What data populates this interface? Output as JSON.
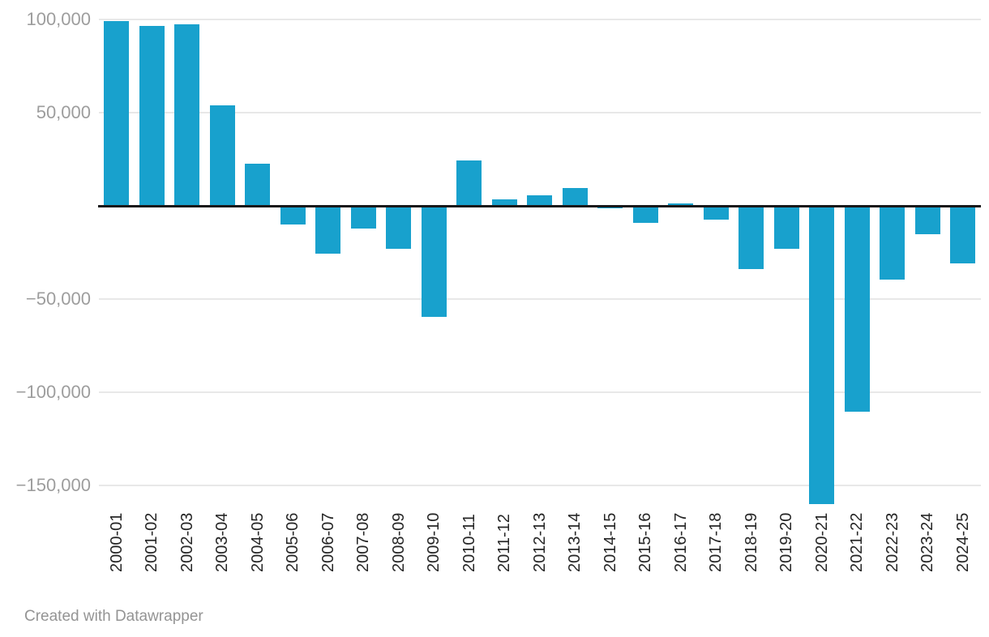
{
  "chart_data": {
    "type": "bar",
    "title": "",
    "xlabel": "",
    "ylabel": "",
    "categories": [
      "2000-01",
      "2001-02",
      "2002-03",
      "2003-04",
      "2004-05",
      "2005-06",
      "2006-07",
      "2007-08",
      "2008-09",
      "2009-10",
      "2010-11",
      "2011-12",
      "2012-13",
      "2013-14",
      "2014-15",
      "2015-16",
      "2016-17",
      "2017-18",
      "2018-19",
      "2019-20",
      "2020-21",
      "2021-22",
      "2022-23",
      "2023-24",
      "2024-25"
    ],
    "values": [
      99000,
      96500,
      97500,
      54000,
      22500,
      -10000,
      -25500,
      -12000,
      -23000,
      -59500,
      24500,
      3500,
      5500,
      9500,
      -1500,
      -9000,
      1500,
      -7500,
      -34000,
      -23000,
      -160000,
      -110500,
      -39500,
      -15000,
      -31000
    ],
    "ylim": [
      -165000,
      110000
    ],
    "yticks": [
      {
        "value": 100000,
        "label": "100,000"
      },
      {
        "value": 50000,
        "label": "50,000"
      },
      {
        "value": -50000,
        "label": "−50,000"
      },
      {
        "value": -100000,
        "label": "−100,000"
      },
      {
        "value": -150000,
        "label": "−150,000"
      }
    ],
    "zero_baseline": true,
    "grid": "horizontal",
    "legend": "none",
    "bar_color": "#18a1cd"
  },
  "colors": {
    "background": "#ffffff",
    "bar": "#18a1cd",
    "grid_line": "#e8e8e8",
    "zero_line": "#18181a",
    "y_tick_label": "#9d9d9d",
    "x_tick_label": "#262626",
    "footer_text": "#949494"
  },
  "footer": {
    "attribution": "Created with Datawrapper"
  }
}
